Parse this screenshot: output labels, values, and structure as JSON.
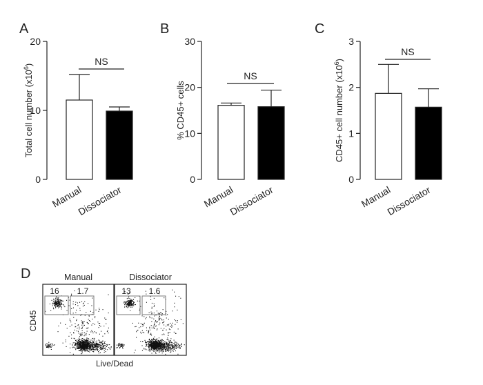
{
  "figure": {
    "panels": [
      {
        "letter": "A",
        "type": "bar",
        "ylabel_prefix": "Total cell number (x10",
        "ylabel_sup": "6",
        "ylabel_suffix": ")",
        "ylim": [
          0,
          20
        ],
        "ticks": [
          "0",
          "10",
          "20"
        ],
        "categories": [
          "Manual",
          "Dissociator"
        ],
        "values": [
          11.5,
          9.9
        ],
        "errors": [
          3.7,
          0.6
        ],
        "fills": [
          "#ffffff",
          "#000000"
        ],
        "significance": "NS"
      },
      {
        "letter": "B",
        "type": "bar",
        "ylabel_prefix": "% CD45+ cells",
        "ylabel_sup": "",
        "ylabel_suffix": "",
        "ylim": [
          0,
          30
        ],
        "ticks": [
          "0",
          "10",
          "20",
          "30"
        ],
        "categories": [
          "Manual",
          "Dissociator"
        ],
        "values": [
          16.1,
          15.8
        ],
        "errors": [
          0.5,
          3.6
        ],
        "fills": [
          "#ffffff",
          "#000000"
        ],
        "significance": "NS"
      },
      {
        "letter": "C",
        "type": "bar",
        "ylabel_prefix": "CD45+ cell number (x10",
        "ylabel_sup": "6",
        "ylabel_suffix": ")",
        "ylim": [
          0,
          3
        ],
        "ticks": [
          "0",
          "1",
          "2",
          "3"
        ],
        "categories": [
          "Manual",
          "Dissociator"
        ],
        "values": [
          1.87,
          1.57
        ],
        "errors": [
          0.63,
          0.4
        ],
        "fills": [
          "#ffffff",
          "#000000"
        ],
        "significance": "NS"
      }
    ],
    "flow": {
      "letter": "D",
      "ylabel": "CD45",
      "xlabel": "Live/Dead",
      "plots": [
        {
          "title": "Manual",
          "gate_left": "16",
          "gate_right": "1.7"
        },
        {
          "title": "Dissociator",
          "gate_left": "13",
          "gate_right": "1.6"
        }
      ]
    }
  },
  "chart_data": [
    {
      "type": "bar",
      "title": "A",
      "ylabel": "Total cell number (x10^6)",
      "categories": [
        "Manual",
        "Dissociator"
      ],
      "values": [
        11.5,
        9.9
      ],
      "error_bars": [
        3.7,
        0.6
      ],
      "ylim": [
        0,
        20
      ],
      "annotation": "NS"
    },
    {
      "type": "bar",
      "title": "B",
      "ylabel": "% CD45+ cells",
      "categories": [
        "Manual",
        "Dissociator"
      ],
      "values": [
        16.1,
        15.8
      ],
      "error_bars": [
        0.5,
        3.6
      ],
      "ylim": [
        0,
        30
      ],
      "annotation": "NS"
    },
    {
      "type": "bar",
      "title": "C",
      "ylabel": "CD45+ cell number (x10^6)",
      "categories": [
        "Manual",
        "Dissociator"
      ],
      "values": [
        1.87,
        1.57
      ],
      "error_bars": [
        0.63,
        0.4
      ],
      "ylim": [
        0,
        3
      ],
      "annotation": "NS"
    },
    {
      "type": "scatter",
      "title": "D",
      "xlabel": "Live/Dead",
      "ylabel": "CD45",
      "panels": [
        {
          "name": "Manual",
          "gate_percentages": [
            16,
            1.7
          ]
        },
        {
          "name": "Dissociator",
          "gate_percentages": [
            13,
            1.6
          ]
        }
      ]
    }
  ]
}
